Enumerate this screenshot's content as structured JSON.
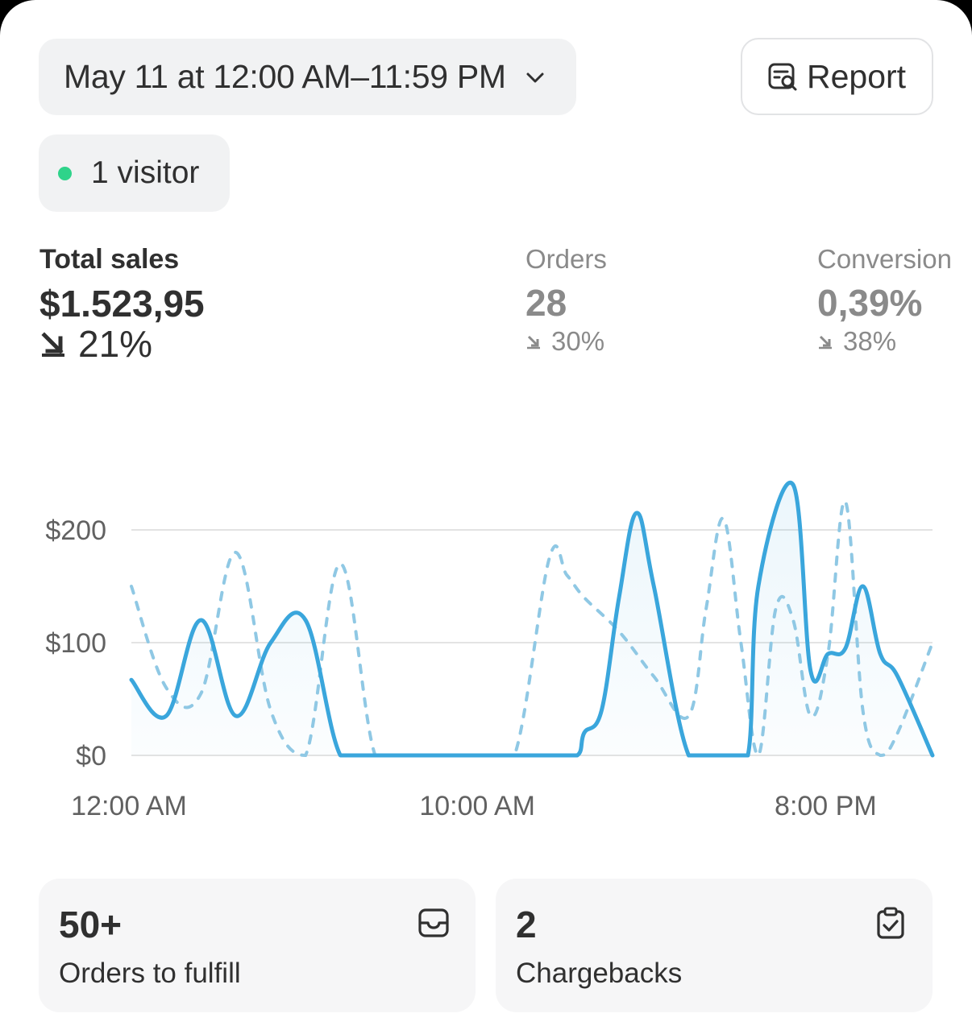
{
  "header": {
    "date_range": "May 11 at 12:00 AM–11:59 PM",
    "report_label": "Report"
  },
  "live": {
    "visitors_label": "1 visitor",
    "dot_color": "#2fd38a"
  },
  "metrics": {
    "total_sales": {
      "title": "Total sales",
      "value": "$1.523,95",
      "delta": "21%",
      "direction": "down"
    },
    "orders": {
      "title": "Orders",
      "value": "28",
      "delta": "30%",
      "direction": "down"
    },
    "conversion": {
      "title": "Conversion",
      "value": "0,39%",
      "delta": "38%",
      "direction": "down"
    }
  },
  "chart_data": {
    "type": "line",
    "y_tick_labels": [
      "$200",
      "$100",
      "$0"
    ],
    "x_tick_labels": [
      "12:00 AM",
      "10:00 AM",
      "8:00 PM"
    ],
    "ylim": [
      0,
      200
    ],
    "x_range_hours": [
      0,
      23
    ],
    "grid": true,
    "series": [
      {
        "style": "solid",
        "color": "#3aa6dc",
        "x": [
          0,
          1,
          2,
          3,
          4,
          5,
          6,
          7,
          8,
          9,
          10,
          11,
          12,
          12.8,
          13,
          13.5,
          14,
          14.5,
          15,
          16,
          17,
          17.7,
          18,
          19,
          19.5,
          20,
          20.5,
          21,
          21.5,
          22,
          23
        ],
        "y": [
          67,
          35,
          120,
          35,
          100,
          120,
          0,
          0,
          0,
          0,
          0,
          0,
          0,
          0,
          20,
          40,
          140,
          215,
          150,
          0,
          0,
          0,
          150,
          240,
          75,
          90,
          95,
          150,
          90,
          70,
          0
        ]
      },
      {
        "style": "dotted",
        "color": "#8fc8e4",
        "x": [
          0,
          1,
          2,
          3,
          4,
          5,
          6,
          7,
          8,
          9,
          10,
          11,
          12,
          12.5,
          13,
          14,
          15,
          16,
          16.5,
          17,
          17.5,
          18,
          18.5,
          19,
          19.5,
          20,
          20.5,
          21,
          21.5,
          22,
          23
        ],
        "y": [
          150,
          60,
          55,
          180,
          40,
          0,
          170,
          0,
          0,
          0,
          0,
          0,
          175,
          160,
          140,
          110,
          70,
          35,
          130,
          210,
          100,
          0,
          130,
          120,
          35,
          90,
          225,
          40,
          0,
          20,
          100
        ]
      }
    ]
  },
  "tiles": [
    {
      "number": "50+",
      "label": "Orders to fulfill",
      "icon": "inbox-icon"
    },
    {
      "number": "2",
      "label": "Chargebacks",
      "icon": "clipboard-check-icon"
    }
  ]
}
